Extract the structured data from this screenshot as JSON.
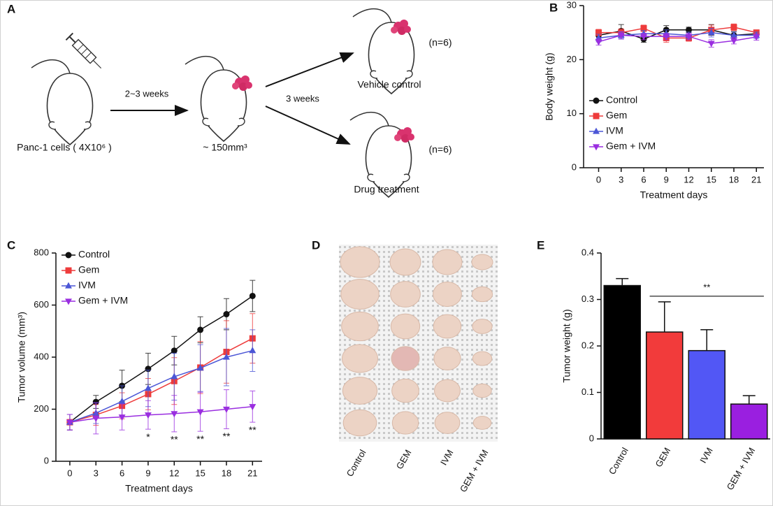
{
  "panels": [
    "A",
    "B",
    "C",
    "D",
    "E"
  ],
  "diagram": {
    "cells": "Panc-1 cells ( 4X10⁶ )",
    "step1": "2~3 weeks",
    "size": "~ 150mm³",
    "step2": "3 weeks",
    "groups": [
      {
        "label": "Vehicle control",
        "n": "(n=6)"
      },
      {
        "label": "Drug treatment",
        "n": "(n=6)"
      }
    ]
  },
  "photo": {
    "labels": [
      "Control",
      "GEM",
      "IVM",
      "GEM + IVM"
    ]
  },
  "chart_data": [
    {
      "type": "line",
      "ylabel": "Body weight (g)",
      "xlabel": "Treatment days",
      "x": [
        0,
        3,
        6,
        9,
        12,
        15,
        18,
        21
      ],
      "xlim": [
        -2,
        22
      ],
      "xticks": [
        0,
        3,
        6,
        9,
        12,
        15,
        18,
        21
      ],
      "ylim": [
        0,
        30
      ],
      "yticks": [
        0,
        10,
        20,
        30
      ],
      "legend": "lower left",
      "series": [
        {
          "name": "Control",
          "color": "#111111",
          "marker": "circle",
          "values": [
            24.5,
            25.3,
            23.8,
            25.5,
            25.5,
            25.5,
            24.5,
            24.8
          ],
          "errors": [
            0.8,
            1.2,
            0.6,
            0.8,
            0.5,
            1.0,
            0.7,
            0.6
          ]
        },
        {
          "name": "Gem",
          "color": "#ee3b3b",
          "marker": "square",
          "values": [
            25,
            25,
            25.8,
            24,
            24,
            25.5,
            26,
            25
          ],
          "errors": [
            0.6,
            0.7,
            0.6,
            0.8,
            0.6,
            0.9,
            0.6,
            0.5
          ]
        },
        {
          "name": "IVM",
          "color": "#4b56d6",
          "marker": "triangle",
          "values": [
            24,
            24.5,
            24.8,
            24.8,
            24.5,
            25,
            24.5,
            24.5
          ],
          "errors": [
            0.7,
            0.6,
            0.6,
            0.7,
            0.6,
            0.8,
            0.6,
            0.6
          ]
        },
        {
          "name": "Gem + IVM",
          "color": "#9a2ee0",
          "marker": "triangle-down",
          "values": [
            23.3,
            24.5,
            24.3,
            24.3,
            24.3,
            23,
            23.5,
            24.2
          ],
          "errors": [
            0.6,
            0.7,
            0.6,
            0.6,
            0.6,
            0.7,
            0.6,
            0.6
          ]
        }
      ]
    },
    {
      "type": "line",
      "ylabel": "Tumor volume (mm³)",
      "xlabel": "Treatment days",
      "x": [
        0,
        3,
        6,
        9,
        12,
        15,
        18,
        21
      ],
      "xlim": [
        -1.6,
        22.1
      ],
      "xticks": [
        0,
        3,
        6,
        9,
        12,
        15,
        18,
        21
      ],
      "ylim": [
        0,
        800
      ],
      "yticks": [
        0,
        200,
        400,
        600,
        800
      ],
      "legend": "upper left",
      "series": [
        {
          "name": "Control",
          "color": "#111111",
          "marker": "circle",
          "values": [
            150,
            228,
            290,
            355,
            425,
            505,
            565,
            635
          ],
          "errors": [
            30,
            25,
            60,
            60,
            55,
            50,
            60,
            60
          ]
        },
        {
          "name": "Gem",
          "color": "#ee3b3b",
          "marker": "square",
          "values": [
            150,
            178,
            213,
            258,
            308,
            360,
            420,
            472
          ],
          "errors": [
            30,
            40,
            50,
            60,
            90,
            100,
            120,
            95
          ]
        },
        {
          "name": "IVM",
          "color": "#4b56d6",
          "marker": "triangle",
          "values": [
            150,
            185,
            230,
            280,
            325,
            358,
            400,
            425
          ],
          "errors": [
            30,
            40,
            60,
            70,
            90,
            90,
            110,
            80
          ]
        },
        {
          "name": "Gem + IVM",
          "color": "#9a2ee0",
          "marker": "triangle-down",
          "values": [
            150,
            165,
            170,
            178,
            183,
            190,
            200,
            210
          ],
          "errors": [
            30,
            60,
            50,
            55,
            70,
            75,
            75,
            60
          ]
        }
      ],
      "annotations": [
        {
          "x": 9,
          "text": "*"
        },
        {
          "x": 12,
          "text": "**"
        },
        {
          "x": 15,
          "text": "**"
        },
        {
          "x": 18,
          "text": "**"
        },
        {
          "x": 21,
          "text": "**"
        }
      ]
    },
    {
      "type": "bar",
      "ylabel": "Tumor weight (g)",
      "categories": [
        "Control",
        "GEM",
        "IVM",
        "GEM + IVM"
      ],
      "values": [
        0.33,
        0.23,
        0.19,
        0.075
      ],
      "errors": [
        0.015,
        0.065,
        0.045,
        0.018
      ],
      "colors": [
        "#000000",
        "#f23b3b",
        "#5257f5",
        "#9a1fe0"
      ],
      "ylim": [
        0,
        0.4
      ],
      "yticks": [
        0,
        0.1,
        0.2,
        0.3,
        0.4
      ],
      "annotations": [
        {
          "text": "**",
          "from": "GEM",
          "to": "GEM + IVM"
        }
      ]
    }
  ]
}
